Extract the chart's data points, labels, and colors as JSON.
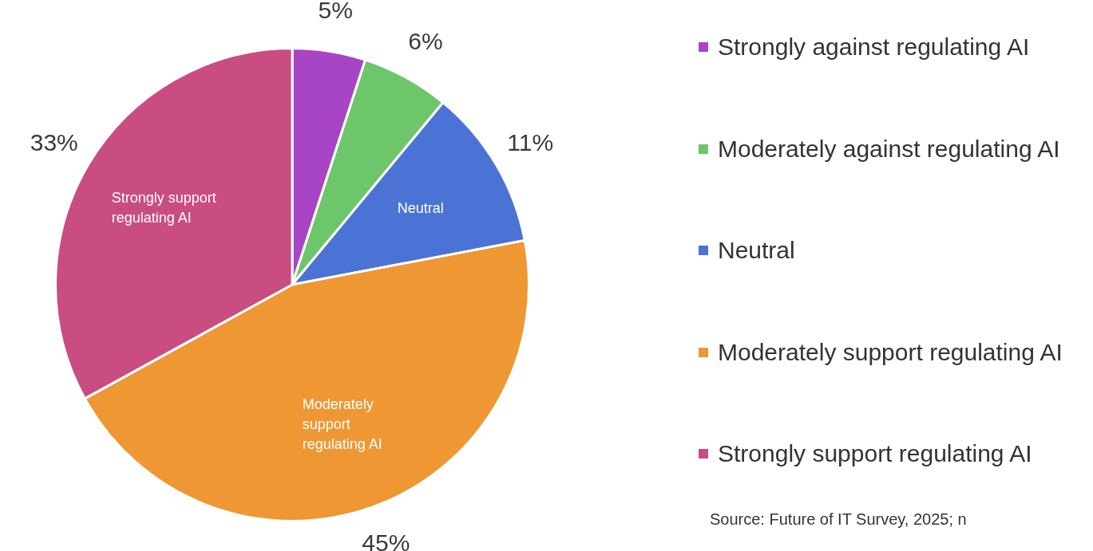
{
  "chart_data": {
    "type": "pie",
    "categories": [
      "Strongly against regulating AI",
      "Moderately against regulating AI",
      "Neutral",
      "Moderately support regulating AI",
      "Strongly support regulating AI"
    ],
    "values": [
      5,
      6,
      11,
      45,
      33
    ],
    "colors": [
      "#a845c5",
      "#6dc66a",
      "#4b73d5",
      "#ee9733",
      "#c94d80"
    ],
    "value_labels": [
      "5%",
      "6%",
      "11%",
      "45%",
      "33%"
    ],
    "legend": "right",
    "annotations": [
      "Source: Future of IT Survey, 2025; n"
    ]
  }
}
